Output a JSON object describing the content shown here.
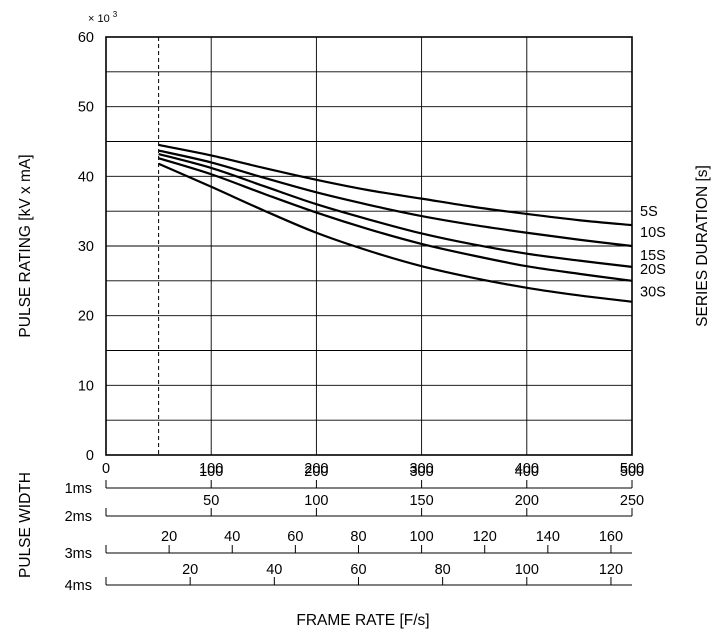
{
  "chart_data": {
    "type": "line",
    "title": "",
    "ylabel": "PULSE RATING  [kV x mA]",
    "y_multiplier": "× 10",
    "y_multiplier_exp": "3",
    "xlabel": "FRAME RATE  [F/s]",
    "right_label": "SERIES DURATION  [s]",
    "pulse_width_label": "PULSE WIDTH",
    "ylim": [
      0,
      60
    ],
    "xlim": [
      0,
      500
    ],
    "y_ticks": [
      "0",
      "10",
      "20",
      "30",
      "40",
      "50",
      "60"
    ],
    "x_ticks": [
      "0",
      "100",
      "200",
      "300",
      "400",
      "500"
    ],
    "grid": true,
    "reference_line_x": 50,
    "pulse_width_axes": [
      {
        "name": "1ms",
        "scale": 1,
        "ticks": [
          100,
          200,
          300,
          400,
          500
        ],
        "labels": [
          "100",
          "200",
          "300",
          "400",
          "500"
        ]
      },
      {
        "name": "2ms",
        "scale": 2,
        "ticks": [
          50,
          100,
          150,
          200,
          250
        ],
        "labels": [
          "50",
          "100",
          "150",
          "200",
          "250"
        ]
      },
      {
        "name": "3ms",
        "scale": 3,
        "ticks": [
          20,
          40,
          60,
          80,
          100,
          120,
          140,
          160
        ],
        "labels": [
          "20",
          "40",
          "60",
          "80",
          "100",
          "120",
          "140",
          "160"
        ]
      },
      {
        "name": "4ms",
        "scale": 4,
        "ticks": [
          20,
          40,
          60,
          80,
          100,
          120
        ],
        "labels": [
          "20",
          "40",
          "60",
          "80",
          "100",
          "120"
        ]
      }
    ],
    "series": [
      {
        "name": "5S",
        "x": [
          50,
          100,
          150,
          200,
          250,
          300,
          350,
          400,
          450,
          500
        ],
        "values": [
          44.5,
          43.0,
          41.2,
          39.5,
          38.0,
          36.8,
          35.6,
          34.6,
          33.7,
          33.0
        ]
      },
      {
        "name": "10S",
        "x": [
          50,
          100,
          150,
          200,
          250,
          300,
          350,
          400,
          450,
          500
        ],
        "values": [
          43.7,
          42.0,
          39.8,
          37.7,
          35.9,
          34.3,
          33.0,
          31.9,
          30.9,
          30.0
        ]
      },
      {
        "name": "15S",
        "x": [
          50,
          100,
          150,
          200,
          250,
          300,
          350,
          400,
          450,
          500
        ],
        "values": [
          43.2,
          41.2,
          38.6,
          36.0,
          33.8,
          31.8,
          30.2,
          28.9,
          27.9,
          27.0
        ]
      },
      {
        "name": "20S",
        "x": [
          50,
          100,
          150,
          200,
          250,
          300,
          350,
          400,
          450,
          500
        ],
        "values": [
          42.6,
          40.3,
          37.5,
          34.8,
          32.4,
          30.3,
          28.6,
          27.1,
          26.0,
          25.0
        ]
      },
      {
        "name": "30S",
        "x": [
          50,
          100,
          150,
          200,
          250,
          300,
          350,
          400,
          450,
          500
        ],
        "values": [
          41.8,
          38.5,
          35.1,
          31.9,
          29.3,
          27.1,
          25.4,
          24.0,
          22.9,
          22.0
        ]
      }
    ]
  }
}
